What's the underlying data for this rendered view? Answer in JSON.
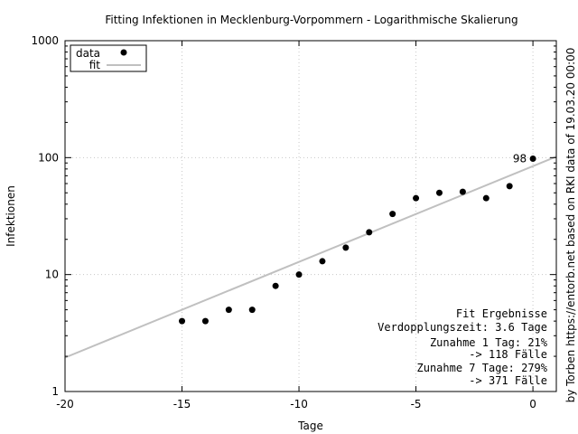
{
  "chart_data": {
    "type": "scatter",
    "title": "Fitting Infektionen in Mecklenburg-Vorpommern - Logarithmische Skalierung",
    "xlabel": "Tage",
    "ylabel": "Infektionen",
    "right_label": "by Torben https://entorb.net based on RKI data of 19.03.20 00:00",
    "xlim": [
      -20,
      1
    ],
    "ylim": [
      1,
      1000
    ],
    "yscale": "log",
    "grid": true,
    "legend_position": "top-left",
    "x_ticks": [
      {
        "value": -20,
        "label": "-20"
      },
      {
        "value": -15,
        "label": "-15"
      },
      {
        "value": -10,
        "label": "-10"
      },
      {
        "value": -5,
        "label": "-5"
      },
      {
        "value": 0,
        "label": "0"
      }
    ],
    "y_ticks": [
      {
        "value": 1,
        "label": "1"
      },
      {
        "value": 10,
        "label": "10"
      },
      {
        "value": 100,
        "label": "100"
      },
      {
        "value": 1000,
        "label": "1000"
      }
    ],
    "series": [
      {
        "name": "data",
        "kind": "points",
        "color": "#000000",
        "x": [
          -15,
          -14,
          -13,
          -12,
          -11,
          -10,
          -9,
          -8,
          -7,
          -6,
          -5,
          -4,
          -3,
          -2,
          -1,
          0
        ],
        "y": [
          4,
          4,
          5,
          5,
          8,
          10,
          13,
          17,
          23,
          33,
          45,
          50,
          51,
          45,
          57,
          98
        ]
      },
      {
        "name": "fit",
        "kind": "line",
        "color": "#c0c0c0",
        "x": [
          -20,
          1
        ],
        "y": [
          1.95,
          102
        ]
      }
    ],
    "annotations": [
      {
        "text": "98",
        "x": 0,
        "y": 98
      }
    ],
    "fit_box": {
      "lines": [
        "Fit Ergebnisse",
        "Verdopplungszeit: 3.6 Tage",
        "Zunahme 1 Tag: 21%",
        "-> 118 Fälle",
        "Zunahme 7 Tage: 279%",
        "-> 371 Fälle"
      ]
    }
  }
}
